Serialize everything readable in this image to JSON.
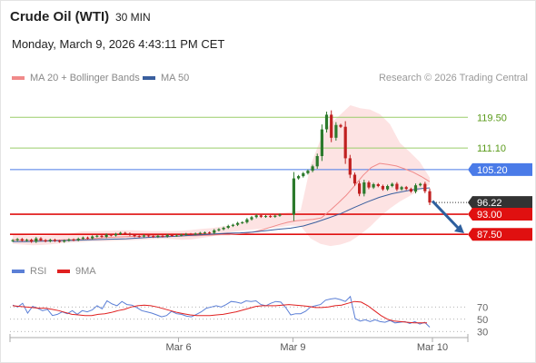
{
  "header": {
    "title": "Crude Oil (WTI)",
    "timeframe": "30 MIN",
    "datetime": "Monday, March 9, 2026 4:43:11 PM CET"
  },
  "legend": {
    "main": [
      {
        "label": "MA 20 + Bollinger Bands",
        "color": "#f08a8a"
      },
      {
        "label": "MA 50",
        "color": "#3a5f9e"
      }
    ],
    "rsi": [
      {
        "label": "RSI",
        "color": "#5b7fd6"
      },
      {
        "label": "9MA",
        "color": "#e02020"
      }
    ]
  },
  "credit": "Research © 2026 Trading Central",
  "colors": {
    "up_candle": "#2c7a2c",
    "down_candle": "#c02020",
    "bb_fill": "#fcd9d9",
    "ma20": "#f08a8a",
    "ma50": "#3a5f9e",
    "resistance": "#9acd6a",
    "resistance_text": "#5a9a1a",
    "pivot": "#4a7be8",
    "support": "#e01010",
    "current_price_bg": "#333333",
    "arrow": "#2e5f9e"
  },
  "chart_data": [
    {
      "type": "candlestick",
      "title": "Crude Oil (WTI) 30 MIN",
      "x_tick_labels": [
        "Mar 6",
        "Mar 9",
        "Mar 10"
      ],
      "y_range": [
        81.6,
        128.0
      ],
      "levels": [
        {
          "value": 119.5,
          "label": "119.50",
          "kind": "resistance"
        },
        {
          "value": 111.1,
          "label": "111.10",
          "kind": "resistance"
        },
        {
          "value": 105.2,
          "label": "105.20",
          "kind": "pivot"
        },
        {
          "value": 96.22,
          "label": "96.22",
          "kind": "current"
        },
        {
          "value": 93.0,
          "label": "93.00",
          "kind": "support"
        },
        {
          "value": 87.5,
          "label": "87.50",
          "kind": "support"
        }
      ],
      "close": [
        85.9,
        86.2,
        85.8,
        86.0,
        85.5,
        86.4,
        85.9,
        85.6,
        86.0,
        85.7,
        85.5,
        85.8,
        86.1,
        85.9,
        86.3,
        86.6,
        86.4,
        86.9,
        87.1,
        86.8,
        87.4,
        87.2,
        87.6,
        87.9,
        87.7,
        87.3,
        87.0,
        86.9,
        87.2,
        87.0,
        86.8,
        87.1,
        86.9,
        87.3,
        87.1,
        87.2,
        87.4,
        87.6,
        87.5,
        87.7,
        87.9,
        88.0,
        87.9,
        88.6,
        88.9,
        89.3,
        89.8,
        90.1,
        90.6,
        90.8,
        91.6,
        92.2,
        92.7,
        92.3,
        92.5,
        92.3,
        92.6,
        92.9,
        102.8,
        103.4,
        104.2,
        104.9,
        106.1,
        108.9,
        116.2,
        120.2,
        113.9,
        117.4,
        116.9,
        108.3,
        103.8,
        101.4,
        98.6,
        101.7,
        100.3,
        101.2,
        100.7,
        99.8,
        100.7,
        101.3,
        99.8,
        100.4,
        99.9,
        99.2,
        100.9,
        101.3,
        99.3,
        96.2
      ],
      "ma20": [
        86.0,
        85.9,
        85.9,
        85.9,
        85.8,
        85.9,
        86.0,
        86.0,
        86.1,
        86.2,
        86.4,
        86.6,
        86.7,
        86.8,
        86.9,
        87.0,
        87.1,
        87.1,
        87.0,
        87.0,
        87.0,
        87.1,
        87.1,
        87.2,
        87.3,
        87.4,
        87.4,
        87.6,
        87.8,
        88.2,
        88.8,
        89.5,
        90.2,
        90.8,
        91.2,
        91.4,
        91.6,
        92.0,
        93.9,
        96.0,
        98.2,
        100.8,
        103.6,
        105.8,
        106.9,
        106.6,
        106.2,
        105.4,
        104.5,
        103.3,
        101.9
      ],
      "ma50": [
        85.5,
        85.5,
        85.6,
        85.7,
        85.8,
        85.9,
        86.0,
        86.1,
        86.2,
        86.3,
        86.5,
        86.7,
        86.8,
        87.0,
        87.2,
        87.4,
        87.6,
        87.8,
        87.9,
        88.1,
        88.5,
        88.9,
        89.2,
        89.8,
        90.8,
        92.0,
        93.2,
        94.8,
        96.3,
        97.6,
        98.6,
        99.3,
        99.9,
        100.2
      ],
      "bb_upper": [
        87.5,
        87.3,
        87.1,
        87.1,
        87.2,
        87.4,
        87.8,
        88.3,
        88.3,
        88.4,
        88.5,
        88.6,
        88.6,
        88.5,
        88.4,
        88.4,
        88.4,
        88.5,
        88.7,
        89.0,
        89.2,
        89.6,
        89.9,
        90.8,
        91.6,
        92.4,
        92.9,
        93.3,
        93.6,
        94.0,
        106.4,
        113.4,
        117.8,
        120.2,
        122.8,
        122.0,
        121.6,
        120.3,
        117.6,
        112.5,
        110.0,
        107.3,
        103.0
      ],
      "bb_lower": [
        84.9,
        84.7,
        84.5,
        84.6,
        84.8,
        85.1,
        85.3,
        85.4,
        85.6,
        85.6,
        85.7,
        85.8,
        85.9,
        86.0,
        86.2,
        86.3,
        86.2,
        86.0,
        86.1,
        86.5,
        86.9,
        87.6,
        88.1,
        88.5,
        88.8,
        89.0,
        89.2,
        89.5,
        89.9,
        89.8,
        86.4,
        84.9,
        84.3,
        84.7,
        85.6,
        87.4,
        89.6,
        92.3,
        94.6,
        96.5,
        98.0,
        99.6,
        101.0
      ]
    },
    {
      "type": "line",
      "title": "RSI",
      "y_ticks": [
        30,
        50,
        70
      ],
      "y_range": [
        20,
        100
      ],
      "series": [
        {
          "name": "RSI",
          "color": "#5b7fd6",
          "values": [
            73,
            70,
            76,
            60,
            71,
            68,
            64,
            66,
            56,
            58,
            62,
            59,
            64,
            58,
            64,
            62,
            65,
            72,
            67,
            80,
            75,
            72,
            79,
            74,
            73,
            69,
            64,
            62,
            60,
            57,
            54,
            56,
            63,
            59,
            58,
            55,
            54,
            58,
            62,
            68,
            70,
            72,
            70,
            74,
            79,
            78,
            76,
            80,
            79,
            80,
            74,
            72,
            76,
            79,
            78,
            69,
            57,
            59,
            59,
            63,
            70,
            72,
            74,
            81,
            83,
            84,
            82,
            79,
            87,
            51,
            47,
            49,
            46,
            49,
            46,
            45,
            48,
            44,
            45,
            46,
            43,
            46,
            42,
            45,
            37
          ]
        },
        {
          "name": "9MA",
          "color": "#e02020",
          "values": [
            72,
            71,
            70,
            69,
            68,
            68,
            66,
            64,
            61,
            58,
            57,
            56,
            56,
            58,
            59,
            61,
            64,
            66,
            70,
            72,
            73,
            72,
            70,
            67,
            64,
            61,
            59,
            57,
            56,
            56,
            56,
            57,
            58,
            60,
            62,
            65,
            68,
            71,
            72,
            72,
            72,
            73,
            74,
            73,
            72,
            71,
            69,
            69,
            70,
            72,
            73,
            76,
            79,
            78,
            72,
            64,
            56,
            50,
            47,
            46,
            45,
            44,
            44,
            44
          ]
        }
      ]
    }
  ]
}
